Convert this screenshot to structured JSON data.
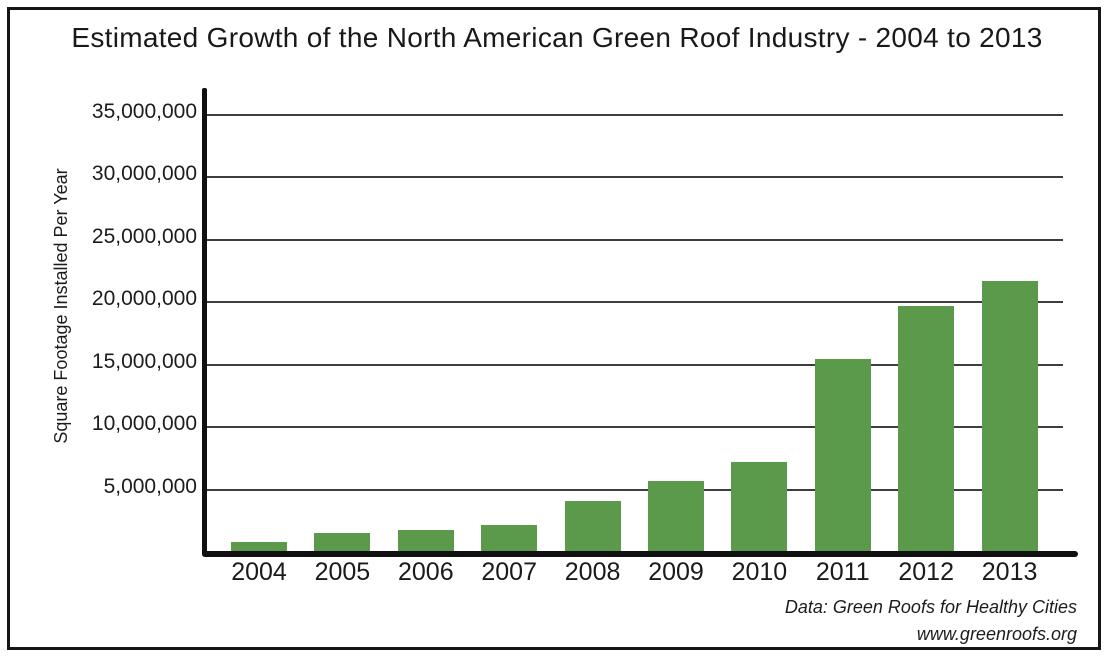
{
  "chart_data": {
    "type": "bar",
    "title": "Estimated Growth of the North American Green Roof Industry - 2004 to 2013",
    "ylabel": "Square Footage Installed Per Year",
    "xlabel": "",
    "categories": [
      "2004",
      "2005",
      "2006",
      "2007",
      "2008",
      "2009",
      "2010",
      "2011",
      "2012",
      "2013"
    ],
    "values": [
      800000,
      1500000,
      1800000,
      2200000,
      4100000,
      5700000,
      7200000,
      15500000,
      19700000,
      21700000
    ],
    "ylim": [
      0,
      35000000
    ],
    "ytick_step": 5000000,
    "yticks": [
      {
        "value": 35000000,
        "label": "35,000,000"
      },
      {
        "value": 30000000,
        "label": "30,000,000"
      },
      {
        "value": 25000000,
        "label": "25,000,000"
      },
      {
        "value": 20000000,
        "label": "20,000,000"
      },
      {
        "value": 15000000,
        "label": "15,000,000"
      },
      {
        "value": 10000000,
        "label": "10,000,000"
      },
      {
        "value": 5000000,
        "label": "5,000,000"
      }
    ],
    "grid": "horizontal",
    "legend": "none",
    "bar_color": "#5a9a4a",
    "axis_color": "#101010",
    "gridline_color": "#3d3d3d"
  },
  "footer": {
    "source_line": "Data: Green Roofs for Healthy Cities",
    "website_line": "www.greenroofs.org"
  }
}
